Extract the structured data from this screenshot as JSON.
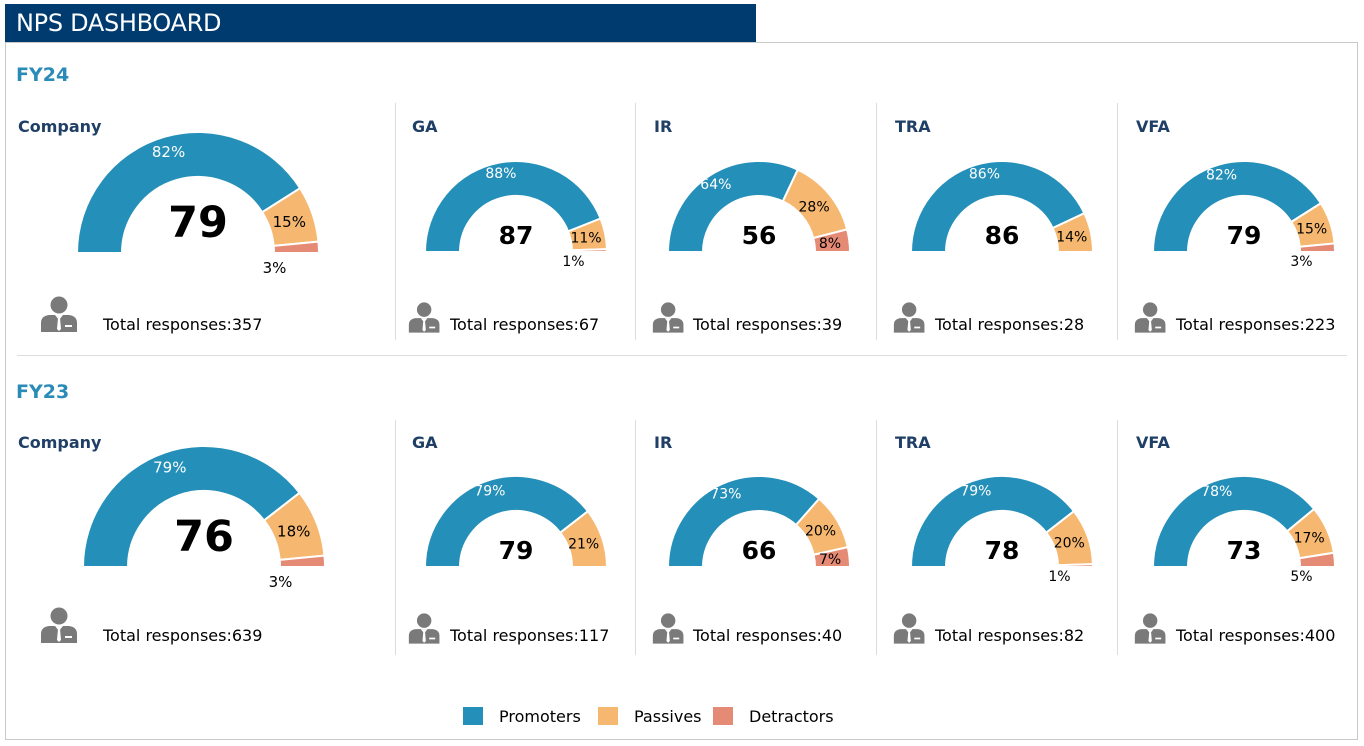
{
  "header": {
    "title": "NPS DASHBOARD"
  },
  "colors": {
    "promoters": "#248fb8",
    "passives": "#f6b870",
    "detractors": "#e58a74"
  },
  "legend": {
    "items": [
      "Promoters",
      "Passives",
      "Detractors"
    ]
  },
  "icons": {
    "respondent": "person-icon"
  },
  "total_prefix": "Total responses:",
  "sections": [
    {
      "label": "FY24",
      "panels": [
        {
          "name": "Company",
          "score": "79",
          "total": "357"
        },
        {
          "name": "GA",
          "score": "87",
          "total": "67"
        },
        {
          "name": "IR",
          "score": "56",
          "total": "39"
        },
        {
          "name": "TRA",
          "score": "86",
          "total": "28"
        },
        {
          "name": "VFA",
          "score": "79",
          "total": "223"
        }
      ]
    },
    {
      "label": "FY23",
      "panels": [
        {
          "name": "Company",
          "score": "76",
          "total": "639"
        },
        {
          "name": "GA",
          "score": "79",
          "total": "117"
        },
        {
          "name": "IR",
          "score": "66",
          "total": "40"
        },
        {
          "name": "TRA",
          "score": "78",
          "total": "82"
        },
        {
          "name": "VFA",
          "score": "73",
          "total": "400"
        }
      ]
    }
  ],
  "chart_data": [
    {
      "type": "pie",
      "section": "FY24",
      "title": "Company",
      "center_value": 79,
      "categories": [
        "Promoters",
        "Passives",
        "Detractors"
      ],
      "values": [
        82,
        15,
        3
      ],
      "labels": [
        "82%",
        "15%",
        "3%"
      ]
    },
    {
      "type": "pie",
      "section": "FY24",
      "title": "GA",
      "center_value": 87,
      "categories": [
        "Promoters",
        "Passives",
        "Detractors"
      ],
      "values": [
        88,
        11,
        1
      ],
      "labels": [
        "88%",
        "11%",
        "1%"
      ]
    },
    {
      "type": "pie",
      "section": "FY24",
      "title": "IR",
      "center_value": 56,
      "categories": [
        "Promoters",
        "Passives",
        "Detractors"
      ],
      "values": [
        64,
        28,
        8
      ],
      "labels": [
        "64%",
        "28%",
        "8%"
      ]
    },
    {
      "type": "pie",
      "section": "FY24",
      "title": "TRA",
      "center_value": 86,
      "categories": [
        "Promoters",
        "Passives",
        "Detractors"
      ],
      "values": [
        86,
        14,
        0
      ],
      "labels": [
        "86%",
        "14%",
        ""
      ]
    },
    {
      "type": "pie",
      "section": "FY24",
      "title": "VFA",
      "center_value": 79,
      "categories": [
        "Promoters",
        "Passives",
        "Detractors"
      ],
      "values": [
        82,
        15,
        3
      ],
      "labels": [
        "82%",
        "15%",
        "3%"
      ]
    },
    {
      "type": "pie",
      "section": "FY23",
      "title": "Company",
      "center_value": 76,
      "categories": [
        "Promoters",
        "Passives",
        "Detractors"
      ],
      "values": [
        79,
        18,
        3
      ],
      "labels": [
        "79%",
        "18%",
        "3%"
      ]
    },
    {
      "type": "pie",
      "section": "FY23",
      "title": "GA",
      "center_value": 79,
      "categories": [
        "Promoters",
        "Passives",
        "Detractors"
      ],
      "values": [
        79,
        21,
        0
      ],
      "labels": [
        "79%",
        "21%",
        ""
      ]
    },
    {
      "type": "pie",
      "section": "FY23",
      "title": "IR",
      "center_value": 66,
      "categories": [
        "Promoters",
        "Passives",
        "Detractors"
      ],
      "values": [
        73,
        20,
        7
      ],
      "labels": [
        "73%",
        "20%",
        "7%"
      ]
    },
    {
      "type": "pie",
      "section": "FY23",
      "title": "TRA",
      "center_value": 78,
      "categories": [
        "Promoters",
        "Passives",
        "Detractors"
      ],
      "values": [
        79,
        20,
        1
      ],
      "labels": [
        "79%",
        "20%",
        "1%"
      ]
    },
    {
      "type": "pie",
      "section": "FY23",
      "title": "VFA",
      "center_value": 73,
      "categories": [
        "Promoters",
        "Passives",
        "Detractors"
      ],
      "values": [
        78,
        17,
        5
      ],
      "labels": [
        "78%",
        "17%",
        "5%"
      ]
    }
  ]
}
